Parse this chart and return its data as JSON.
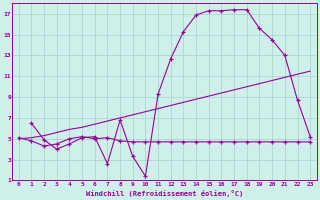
{
  "xlabel": "Windchill (Refroidissement éolien,°C)",
  "background_color": "#cff0ea",
  "grid_color": "#a8d8d0",
  "line_color": "#990099",
  "spine_color": "#990099",
  "xlim": [
    -0.5,
    23.5
  ],
  "ylim": [
    1,
    18
  ],
  "xticks": [
    0,
    1,
    2,
    3,
    4,
    5,
    6,
    7,
    8,
    9,
    10,
    11,
    12,
    13,
    14,
    15,
    16,
    17,
    18,
    19,
    20,
    21,
    22,
    23
  ],
  "yticks": [
    1,
    3,
    5,
    7,
    9,
    11,
    13,
    15,
    17
  ],
  "series1_x": [
    1,
    2,
    3,
    4,
    5,
    6,
    7,
    8,
    9,
    10,
    11,
    12,
    13,
    14,
    15,
    16,
    17,
    18,
    19,
    20,
    21,
    22,
    23
  ],
  "series1_y": [
    6.5,
    4.9,
    4.0,
    4.5,
    5.1,
    5.2,
    2.6,
    6.8,
    3.3,
    1.4,
    9.3,
    12.7,
    15.3,
    16.9,
    17.3,
    17.3,
    17.4,
    17.4,
    15.6,
    14.5,
    13.0,
    8.7,
    5.2
  ],
  "series2_x": [
    0,
    1,
    2,
    3,
    4,
    5,
    6,
    7,
    8,
    9,
    10,
    11,
    12,
    13,
    14,
    15,
    16,
    17,
    18,
    19,
    20,
    21,
    22,
    23
  ],
  "series2_y": [
    5.1,
    4.8,
    4.3,
    4.5,
    5.0,
    5.2,
    5.0,
    5.1,
    4.8,
    4.7,
    4.7,
    4.7,
    4.7,
    4.7,
    4.7,
    4.7,
    4.7,
    4.7,
    4.7,
    4.7,
    4.7,
    4.7,
    4.7,
    4.7
  ],
  "series3_x": [
    0,
    1,
    2,
    3,
    4,
    5,
    6,
    7,
    8,
    9,
    10,
    11,
    12,
    13,
    14,
    15,
    16,
    17,
    18,
    19,
    20,
    21,
    22,
    23
  ],
  "series3_y": [
    5.0,
    5.1,
    5.3,
    5.6,
    5.9,
    6.1,
    6.4,
    6.7,
    7.0,
    7.3,
    7.6,
    7.9,
    8.2,
    8.5,
    8.8,
    9.1,
    9.4,
    9.7,
    10.0,
    10.3,
    10.6,
    10.9,
    11.2,
    11.5
  ],
  "marker": "+"
}
